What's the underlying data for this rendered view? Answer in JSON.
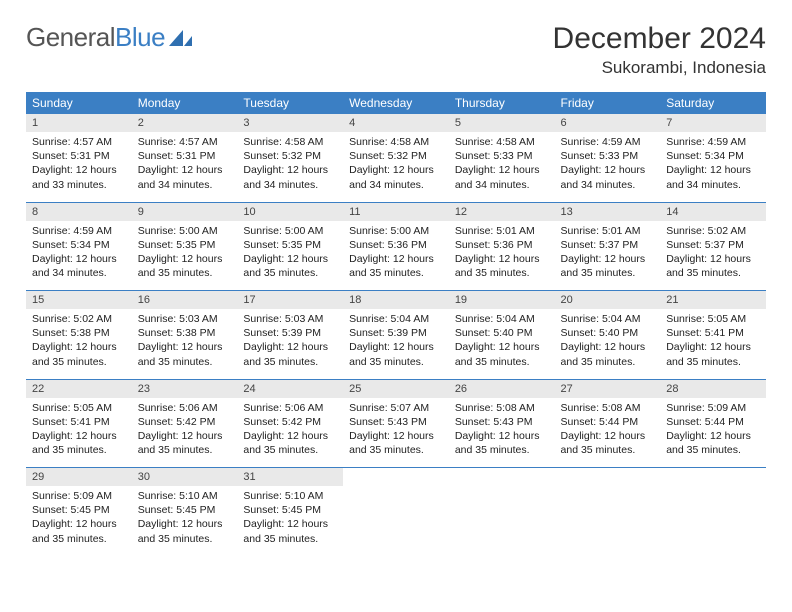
{
  "logo": {
    "text1": "General",
    "text2": "Blue"
  },
  "title": "December 2024",
  "location": "Sukorambi, Indonesia",
  "colors": {
    "header_bg": "#3b7fc4",
    "header_text": "#ffffff",
    "daynum_bg": "#e9e9e9",
    "row_divider": "#3b7fc4",
    "body_text": "#222222",
    "page_bg": "#ffffff",
    "logo_gray": "#555555",
    "logo_blue": "#3b7fc4"
  },
  "typography": {
    "month_title_fontsize": 30,
    "location_fontsize": 17,
    "weekday_fontsize": 12,
    "daynum_fontsize": 11,
    "detail_fontsize": 10.5
  },
  "weekdays": [
    "Sunday",
    "Monday",
    "Tuesday",
    "Wednesday",
    "Thursday",
    "Friday",
    "Saturday"
  ],
  "weeks": [
    [
      {
        "n": "1",
        "sr": "4:57 AM",
        "ss": "5:31 PM",
        "dl": "12 hours and 33 minutes."
      },
      {
        "n": "2",
        "sr": "4:57 AM",
        "ss": "5:31 PM",
        "dl": "12 hours and 34 minutes."
      },
      {
        "n": "3",
        "sr": "4:58 AM",
        "ss": "5:32 PM",
        "dl": "12 hours and 34 minutes."
      },
      {
        "n": "4",
        "sr": "4:58 AM",
        "ss": "5:32 PM",
        "dl": "12 hours and 34 minutes."
      },
      {
        "n": "5",
        "sr": "4:58 AM",
        "ss": "5:33 PM",
        "dl": "12 hours and 34 minutes."
      },
      {
        "n": "6",
        "sr": "4:59 AM",
        "ss": "5:33 PM",
        "dl": "12 hours and 34 minutes."
      },
      {
        "n": "7",
        "sr": "4:59 AM",
        "ss": "5:34 PM",
        "dl": "12 hours and 34 minutes."
      }
    ],
    [
      {
        "n": "8",
        "sr": "4:59 AM",
        "ss": "5:34 PM",
        "dl": "12 hours and 34 minutes."
      },
      {
        "n": "9",
        "sr": "5:00 AM",
        "ss": "5:35 PM",
        "dl": "12 hours and 35 minutes."
      },
      {
        "n": "10",
        "sr": "5:00 AM",
        "ss": "5:35 PM",
        "dl": "12 hours and 35 minutes."
      },
      {
        "n": "11",
        "sr": "5:00 AM",
        "ss": "5:36 PM",
        "dl": "12 hours and 35 minutes."
      },
      {
        "n": "12",
        "sr": "5:01 AM",
        "ss": "5:36 PM",
        "dl": "12 hours and 35 minutes."
      },
      {
        "n": "13",
        "sr": "5:01 AM",
        "ss": "5:37 PM",
        "dl": "12 hours and 35 minutes."
      },
      {
        "n": "14",
        "sr": "5:02 AM",
        "ss": "5:37 PM",
        "dl": "12 hours and 35 minutes."
      }
    ],
    [
      {
        "n": "15",
        "sr": "5:02 AM",
        "ss": "5:38 PM",
        "dl": "12 hours and 35 minutes."
      },
      {
        "n": "16",
        "sr": "5:03 AM",
        "ss": "5:38 PM",
        "dl": "12 hours and 35 minutes."
      },
      {
        "n": "17",
        "sr": "5:03 AM",
        "ss": "5:39 PM",
        "dl": "12 hours and 35 minutes."
      },
      {
        "n": "18",
        "sr": "5:04 AM",
        "ss": "5:39 PM",
        "dl": "12 hours and 35 minutes."
      },
      {
        "n": "19",
        "sr": "5:04 AM",
        "ss": "5:40 PM",
        "dl": "12 hours and 35 minutes."
      },
      {
        "n": "20",
        "sr": "5:04 AM",
        "ss": "5:40 PM",
        "dl": "12 hours and 35 minutes."
      },
      {
        "n": "21",
        "sr": "5:05 AM",
        "ss": "5:41 PM",
        "dl": "12 hours and 35 minutes."
      }
    ],
    [
      {
        "n": "22",
        "sr": "5:05 AM",
        "ss": "5:41 PM",
        "dl": "12 hours and 35 minutes."
      },
      {
        "n": "23",
        "sr": "5:06 AM",
        "ss": "5:42 PM",
        "dl": "12 hours and 35 minutes."
      },
      {
        "n": "24",
        "sr": "5:06 AM",
        "ss": "5:42 PM",
        "dl": "12 hours and 35 minutes."
      },
      {
        "n": "25",
        "sr": "5:07 AM",
        "ss": "5:43 PM",
        "dl": "12 hours and 35 minutes."
      },
      {
        "n": "26",
        "sr": "5:08 AM",
        "ss": "5:43 PM",
        "dl": "12 hours and 35 minutes."
      },
      {
        "n": "27",
        "sr": "5:08 AM",
        "ss": "5:44 PM",
        "dl": "12 hours and 35 minutes."
      },
      {
        "n": "28",
        "sr": "5:09 AM",
        "ss": "5:44 PM",
        "dl": "12 hours and 35 minutes."
      }
    ],
    [
      {
        "n": "29",
        "sr": "5:09 AM",
        "ss": "5:45 PM",
        "dl": "12 hours and 35 minutes."
      },
      {
        "n": "30",
        "sr": "5:10 AM",
        "ss": "5:45 PM",
        "dl": "12 hours and 35 minutes."
      },
      {
        "n": "31",
        "sr": "5:10 AM",
        "ss": "5:45 PM",
        "dl": "12 hours and 35 minutes."
      },
      null,
      null,
      null,
      null
    ]
  ],
  "labels": {
    "sunrise": "Sunrise:",
    "sunset": "Sunset:",
    "daylight": "Daylight:"
  }
}
